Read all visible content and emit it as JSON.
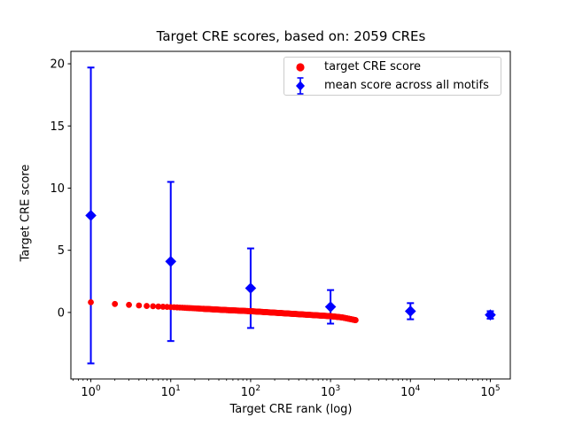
{
  "chart_data": {
    "type": "scatter",
    "title": "Target CRE scores, based on: 2059 CREs",
    "xlabel": "Target CRE rank (log)",
    "ylabel": "Target CRE score",
    "x_scale": "log",
    "xlim_log10": [
      -0.25,
      5.25
    ],
    "ylim": [
      -5.35,
      21.0
    ],
    "grid": false,
    "y_ticks": [
      0,
      5,
      10,
      15,
      20
    ],
    "x_ticks": [
      {
        "base": "10",
        "exp": "0",
        "value": 1
      },
      {
        "base": "10",
        "exp": "1",
        "value": 10
      },
      {
        "base": "10",
        "exp": "2",
        "value": 100
      },
      {
        "base": "10",
        "exp": "3",
        "value": 1000
      },
      {
        "base": "10",
        "exp": "4",
        "value": 10000
      },
      {
        "base": "10",
        "exp": "5",
        "value": 100000
      }
    ],
    "legend": {
      "position": "upper right",
      "frame_color": "#cccccc",
      "entries": [
        {
          "label": "target CRE score",
          "marker": "circle",
          "color": "#ff0000"
        },
        {
          "label": "mean score across all motifs",
          "marker": "diamond-errorbar",
          "color": "#0000ff"
        }
      ]
    },
    "series": [
      {
        "name": "target CRE score",
        "marker": "circle",
        "color": "#ff0000",
        "n_points": 2059,
        "note": "2059 sorted CRE scores forming a dense descending band; values estimated at control ranks, log-interpolated between them",
        "control_points": {
          "rank": [
            1,
            2,
            3,
            5,
            10,
            20,
            50,
            100,
            200,
            500,
            1000,
            1400,
            2059
          ],
          "score": [
            0.82,
            0.68,
            0.61,
            0.52,
            0.43,
            0.33,
            0.19,
            0.1,
            -0.02,
            -0.18,
            -0.3,
            -0.4,
            -0.62
          ]
        }
      },
      {
        "name": "mean score across all motifs",
        "marker": "diamond",
        "color": "#0000ff",
        "x": [
          1,
          10,
          100,
          1000,
          10000,
          100000
        ],
        "mean": [
          7.8,
          4.1,
          1.95,
          0.45,
          0.1,
          -0.2
        ],
        "err": [
          11.9,
          6.4,
          3.2,
          1.35,
          0.65,
          0.3
        ]
      }
    ]
  }
}
